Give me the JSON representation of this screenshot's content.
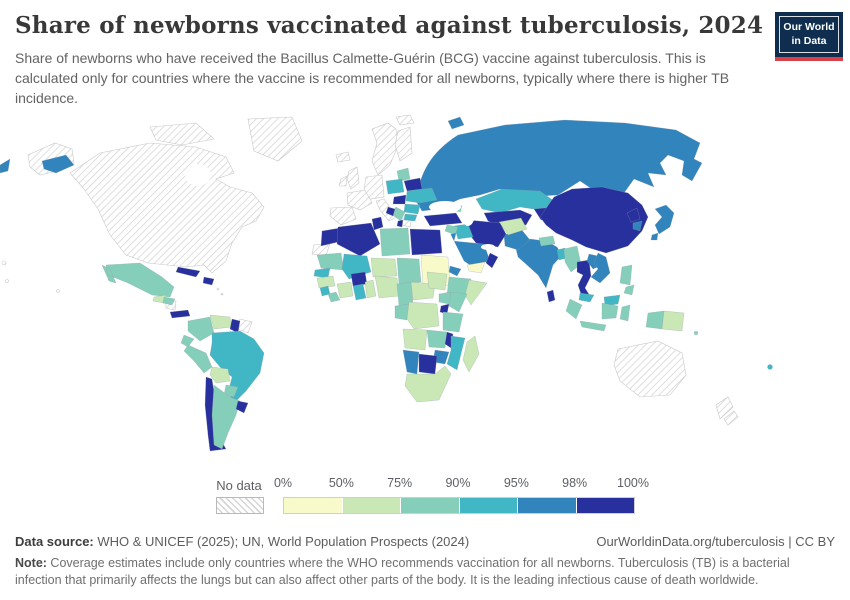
{
  "header": {
    "title": "Share of newborns vaccinated against tuberculosis, 2024",
    "subtitle": "Share of newborns who have received the Bacillus Calmette-Guérin (BCG) vaccine against tuberculosis. This is calculated only for countries where the vaccine is recommended for all newborns, typically where there is higher TB incidence.",
    "logo": {
      "line1": "Our World",
      "line2": "in Data",
      "bg_color": "#0f2d4e",
      "accent_color": "#d8404a"
    }
  },
  "legend": {
    "no_data_label": "No data",
    "tick_labels": [
      "0%",
      "50%",
      "75%",
      "90%",
      "95%",
      "98%",
      "100%"
    ]
  },
  "footer": {
    "datasource_label": "Data source:",
    "datasource_text": " WHO & UNICEF (2025); UN, World Population Prospects (2024)",
    "link_text": "OurWorldinData.org/tuberculosis | CC BY",
    "note_label": "Note:",
    "note_text": " Coverage estimates include only countries where the WHO recommends vaccination for all newborns. Tuberculosis (TB) is a bacterial infection that primarily affects the lungs but can also affect other parts of the body. It is the leading infectious cause of death worldwide."
  },
  "chart_data": {
    "type": "choropleth_map",
    "title": "Share of newborns vaccinated against tuberculosis",
    "year": "2024",
    "unit": "share of newborns (%)",
    "legend_position": "bottom",
    "bins": [
      {
        "label": "0-50%",
        "color": "#f8fac9"
      },
      {
        "label": "50-75%",
        "color": "#c9e8b5"
      },
      {
        "label": "75-90%",
        "color": "#85cfba"
      },
      {
        "label": "90-95%",
        "color": "#41b6c4"
      },
      {
        "label": "95-98%",
        "color": "#3284bd"
      },
      {
        "label": "98-100%",
        "color": "#28309d"
      }
    ],
    "no_data": {
      "label": "No data",
      "pattern": "diagonal-hatch",
      "hatch_color": "#d6d6d6"
    },
    "countries": {
      "russia": "95-98%",
      "kazakhstan": "90-95%",
      "uzbekistan": "98-100%",
      "kyrgyzstan": "98-100%",
      "china": "98-100%",
      "mongolia": "98-100%",
      "north-korea": "98-100%",
      "south-korea": "95-98%",
      "japan": "95-98%",
      "india": "95-98%",
      "pakistan": "95-98%",
      "afghanistan": "50-75%",
      "iran": "98-100%",
      "iraq": "90-95%",
      "turkey": "98-100%",
      "syria": "75-90%",
      "georgia": "75-90%",
      "azerbaijan": "98-100%",
      "jordan": "95-98%",
      "saudi-arabia": "95-98%",
      "yemen": "0-50%",
      "oman": "98-100%",
      "egypt": "98-100%",
      "libya": "75-90%",
      "tunisia": "98-100%",
      "algeria": "98-100%",
      "morocco": "98-100%",
      "mauritania": "75-90%",
      "mali": "90-95%",
      "niger": "50-75%",
      "chad": "75-90%",
      "sudan": "0-50%",
      "eritrea": "95-98%",
      "ethiopia": "75-90%",
      "somalia": "50-75%",
      "senegal": "90-95%",
      "guinea": "50-75%",
      "sierra-leone": "90-95%",
      "liberia": "75-90%",
      "cote-divoire": "50-75%",
      "burkina-faso": "98-100%",
      "ghana": "90-95%",
      "benin": "50-75%",
      "nigeria": "50-75%",
      "cameroon": "75-90%",
      "central-african-republic": "50-75%",
      "south-sudan": "50-75%",
      "uganda": "75-90%",
      "kenya": "75-90%",
      "rwanda": "98-100%",
      "congo": "75-90%",
      "democratic-republic-of-congo": "50-75%",
      "tanzania": "75-90%",
      "angola": "50-75%",
      "zambia": "75-90%",
      "malawi": "98-100%",
      "mozambique": "90-95%",
      "zimbabwe": "95-98%",
      "botswana": "98-100%",
      "namibia": "95-98%",
      "south-africa": "50-75%",
      "madagascar": "50-75%",
      "nepal": "75-90%",
      "bangladesh": "90-95%",
      "sri-lanka": "98-100%",
      "myanmar": "75-90%",
      "thailand": "98-100%",
      "laos": "95-98%",
      "vietnam": "95-98%",
      "cambodia": "95-98%",
      "malaysia": "90-95%",
      "indonesia": "75-90%",
      "philippines": "75-90%",
      "papua-new-guinea": "50-75%",
      "fiji": "90-95%",
      "solomon-islands": "75-90%",
      "mexico": "75-90%",
      "guatemala": "50-75%",
      "honduras": "75-90%",
      "panama": "98-100%",
      "cuba": "98-100%",
      "haiti": "98-100%",
      "dominican-republic": "98-100%",
      "colombia": "75-90%",
      "venezuela": "50-75%",
      "guyana": "98-100%",
      "ecuador": "75-90%",
      "peru": "75-90%",
      "brazil": "90-95%",
      "bolivia": "50-75%",
      "paraguay": "75-90%",
      "chile": "98-100%",
      "argentina": "75-90%",
      "uruguay": "98-100%",
      "lithuania": "75-90%",
      "belarus": "98-100%",
      "poland": "90-95%",
      "ukraine": "90-95%",
      "hungary": "98-100%",
      "romania": "90-95%",
      "serbia": "75-90%",
      "bosnia-and-herzegovina": "98-100%",
      "bulgaria": "90-95%",
      "albania": "98-100%"
    },
    "no_data_countries": [
      "United States",
      "Canada",
      "Greenland",
      "Iceland",
      "United Kingdom",
      "Ireland",
      "Norway",
      "Sweden",
      "Finland",
      "France",
      "Germany",
      "Spain",
      "Portugal",
      "Italy",
      "Greece",
      "Australia",
      "New Zealand",
      "Western Sahara",
      "Suriname",
      "French Guiana",
      "Nicaragua",
      "Costa Rica"
    ]
  }
}
